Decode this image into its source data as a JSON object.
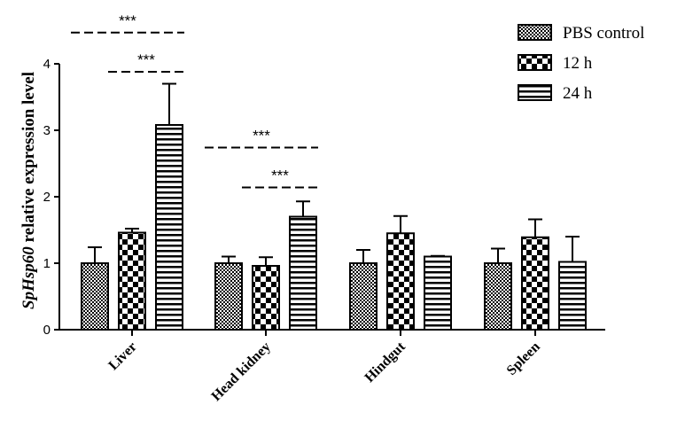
{
  "chart_data": {
    "type": "bar",
    "ylabel_italic": "SpHsp60",
    "ylabel_rest": " relative expression level",
    "xlabel": "",
    "ylim": [
      0,
      4
    ],
    "yticks": [
      "0",
      "1",
      "2",
      "3",
      "4"
    ],
    "categories": [
      "Liver",
      "Head kidney",
      "Hindgut",
      "Spleen"
    ],
    "series": [
      {
        "name": "PBS control",
        "pattern": "checker-fine",
        "values": [
          1.0,
          1.0,
          1.0,
          1.0
        ],
        "errors": [
          0.24,
          0.1,
          0.2,
          0.22
        ]
      },
      {
        "name": "12 h",
        "pattern": "checker-coarse",
        "values": [
          1.46,
          0.96,
          1.45,
          1.39
        ],
        "errors": [
          0.06,
          0.13,
          0.26,
          0.27
        ]
      },
      {
        "name": "24 h",
        "pattern": "horizontal-lines",
        "values": [
          3.08,
          1.7,
          1.1,
          1.02
        ],
        "errors": [
          0.62,
          0.23,
          0.01,
          0.38
        ]
      }
    ],
    "significance": [
      {
        "category": 0,
        "from_series": 0,
        "to_series": 2,
        "y": 4.47,
        "label": "***"
      },
      {
        "category": 0,
        "from_series": 1,
        "to_series": 2,
        "y": 3.88,
        "label": "***"
      },
      {
        "category": 1,
        "from_series": 0,
        "to_series": 2,
        "y": 2.74,
        "label": "***"
      },
      {
        "category": 1,
        "from_series": 1,
        "to_series": 2,
        "y": 2.14,
        "label": "***"
      }
    ],
    "legend_position": "top-right",
    "grid": false
  }
}
